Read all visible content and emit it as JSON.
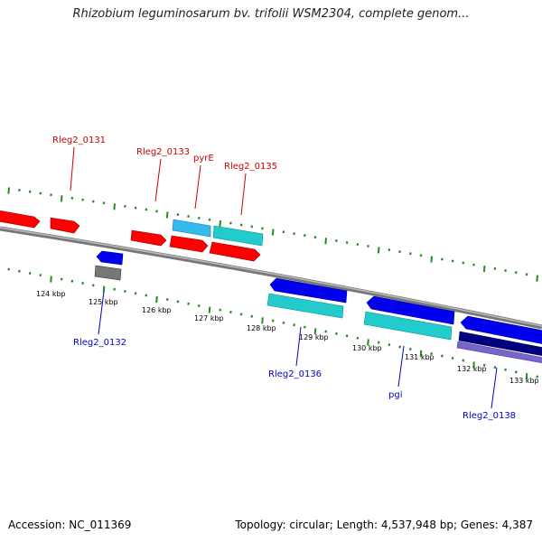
{
  "title": "Rhizobium leguminosarum bv. trifolii WSM2304, complete genom...",
  "footer": {
    "accession": "Accession: NC_011369",
    "summary": "Topology: circular; Length: 4,537,948 bp; Genes: 4,387"
  },
  "colors": {
    "forward_gene": "#ff0000",
    "reverse_gene": "#0000ee",
    "forward_rna": "#33bbee",
    "cds_forward_alt": "#22cccc",
    "pseudogene": "#777777",
    "reverse_dark": "#000080",
    "reverse_purple": "#7766cc",
    "backbone": "#888888",
    "tick": "#228b22",
    "forward_label": "#cc0000",
    "reverse_label": "#0000cc"
  },
  "scale_labels": [
    "124 kbp",
    "125 kbp",
    "126 kbp",
    "127 kbp",
    "128 kbp",
    "129 kbp",
    "130 kbp",
    "131 kbp",
    "132 kbp",
    "133 kbp"
  ],
  "gene_labels": {
    "top": [
      "Rleg2_0131",
      "Rleg2_0133",
      "pyrE",
      "Rleg2_0135"
    ],
    "bottom": [
      "Rleg2_0132",
      "Rleg2_0136",
      "pgi",
      "Rleg2_0138"
    ]
  }
}
